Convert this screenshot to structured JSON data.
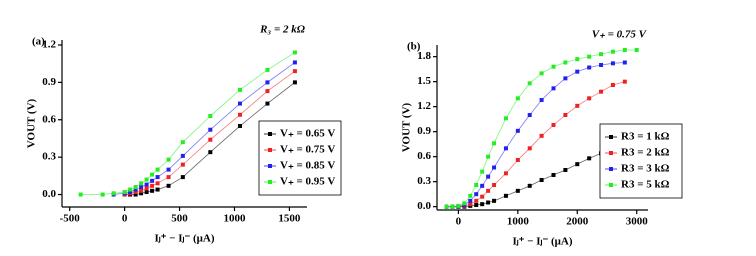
{
  "chart_data": [
    {
      "type": "line",
      "panel_label": "(a)",
      "annotation": "R₃ = 2 kΩ",
      "x_label": "Iⱼ⁺ − Iⱼ⁻ (μA)",
      "y_label": "VOUT (V)",
      "x": [
        -400,
        -200,
        -100,
        0,
        50,
        100,
        150,
        200,
        250,
        300,
        400,
        530,
        780,
        1050,
        1300,
        1550
      ],
      "series": [
        {
          "name": "V₊ = 0.65 V",
          "color": "#000000",
          "values": [
            null,
            null,
            null,
            0,
            0,
            0,
            0.01,
            0.02,
            0.03,
            0.04,
            0.07,
            0.14,
            0.34,
            0.55,
            0.73,
            0.9
          ]
        },
        {
          "name": "V₊ = 0.75 V",
          "color": "#ee2222",
          "values": [
            null,
            null,
            null,
            0,
            0.01,
            0.02,
            0.03,
            0.05,
            0.07,
            0.09,
            0.14,
            0.24,
            0.44,
            0.64,
            0.83,
            0.99
          ]
        },
        {
          "name": "V₊ = 0.85 V",
          "color": "#2222ee",
          "values": [
            null,
            null,
            0,
            0.01,
            0.02,
            0.04,
            0.06,
            0.08,
            0.11,
            0.14,
            0.2,
            0.31,
            0.52,
            0.73,
            0.9,
            1.06
          ]
        },
        {
          "name": "V₊ = 0.95 V",
          "color": "#22ee22",
          "values": [
            0,
            0,
            0.01,
            0.02,
            0.04,
            0.06,
            0.09,
            0.12,
            0.16,
            0.2,
            0.28,
            0.42,
            0.63,
            0.84,
            1.0,
            1.14
          ]
        }
      ],
      "xlim": [
        -570,
        1660
      ],
      "xticks": [
        -500,
        0,
        500,
        1000,
        1500
      ],
      "ylim": [
        -0.1,
        1.24
      ],
      "yticks": [
        {
          "value": 0,
          "label": "0.0"
        },
        0.3,
        0.6,
        0.9,
        1.2
      ],
      "legend": "lower right",
      "grid": false
    },
    {
      "type": "line",
      "panel_label": "(b)",
      "annotation": "V₊ = 0.75 V",
      "x_label": "Iⱼ⁺ − Iⱼ⁻ (μA)",
      "y_label": "VOUT (V)",
      "x": [
        -200,
        -100,
        0,
        100,
        200,
        300,
        400,
        500,
        600,
        800,
        1000,
        1200,
        1400,
        1600,
        1800,
        2000,
        2200,
        2400,
        2600,
        2800,
        3000
      ],
      "series": [
        {
          "name": "R3 = 1 kΩ",
          "color": "#000000",
          "values": [
            0,
            0,
            0,
            0,
            0.01,
            0.02,
            0.03,
            0.05,
            0.07,
            0.13,
            0.19,
            0.25,
            0.32,
            0.38,
            0.44,
            0.51,
            0.58,
            0.64,
            0.7,
            0.76,
            null
          ]
        },
        {
          "name": "R3 = 2 kΩ",
          "color": "#ee2222",
          "values": [
            0,
            0,
            0,
            0.01,
            0.03,
            0.07,
            0.12,
            0.19,
            0.26,
            0.4,
            0.56,
            0.7,
            0.85,
            0.98,
            1.1,
            1.21,
            1.3,
            1.38,
            1.46,
            1.5,
            null
          ]
        },
        {
          "name": "R3 = 3 kΩ",
          "color": "#2222ee",
          "values": [
            0,
            0,
            0,
            0.02,
            0.07,
            0.15,
            0.25,
            0.36,
            0.47,
            0.7,
            0.91,
            1.1,
            1.28,
            1.42,
            1.54,
            1.62,
            1.67,
            1.7,
            1.72,
            1.73,
            null
          ]
        },
        {
          "name": "R3 = 5 kΩ",
          "color": "#22ee22",
          "values": [
            0,
            0,
            0.01,
            0.04,
            0.13,
            0.26,
            0.42,
            0.6,
            0.76,
            1.06,
            1.3,
            1.48,
            1.6,
            1.68,
            1.73,
            1.77,
            1.8,
            1.83,
            1.86,
            1.88,
            1.88
          ]
        }
      ],
      "xlim": [
        -360,
        3190
      ],
      "xticks": [
        0,
        1000,
        2000,
        3000
      ],
      "ylim": [
        -0.04,
        1.94
      ],
      "yticks": [
        {
          "value": 0,
          "label": "0.0"
        },
        0.3,
        0.6,
        0.9,
        1.2,
        1.5,
        1.8
      ],
      "legend": "lower right",
      "grid": false
    }
  ]
}
